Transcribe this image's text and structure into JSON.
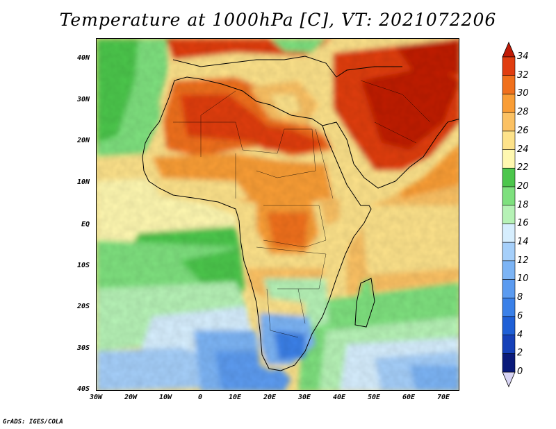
{
  "title": "Temperature at 1000hPa [C], VT: 2021072206",
  "credit": "GrADS: IGES/COLA",
  "map": {
    "lon_range": [
      -30,
      75
    ],
    "lat_range": [
      -40,
      45
    ],
    "lat_ticks": [
      "40N",
      "30N",
      "20N",
      "10N",
      "EQ",
      "10S",
      "20S",
      "30S",
      "40S"
    ],
    "lon_ticks": [
      "30W",
      "20W",
      "10W",
      "0",
      "10E",
      "20E",
      "30E",
      "40E",
      "50E",
      "60E",
      "70E"
    ]
  },
  "colorbar": {
    "labels": [
      "0",
      "2",
      "4",
      "6",
      "8",
      "10",
      "12",
      "14",
      "16",
      "18",
      "20",
      "22",
      "24",
      "26",
      "28",
      "30",
      "32",
      "34"
    ],
    "colors": [
      "#0a1a7a",
      "#1540b8",
      "#1e5fd6",
      "#3a80e8",
      "#5b9bf0",
      "#7cb4f5",
      "#a5cffa",
      "#d6eefe",
      "#b6f2b6",
      "#7ee07e",
      "#4cc64c",
      "#fff8b0",
      "#fde28a",
      "#fbc163",
      "#f99d35",
      "#f0701c",
      "#e03d10",
      "#c01a06"
    ]
  }
}
